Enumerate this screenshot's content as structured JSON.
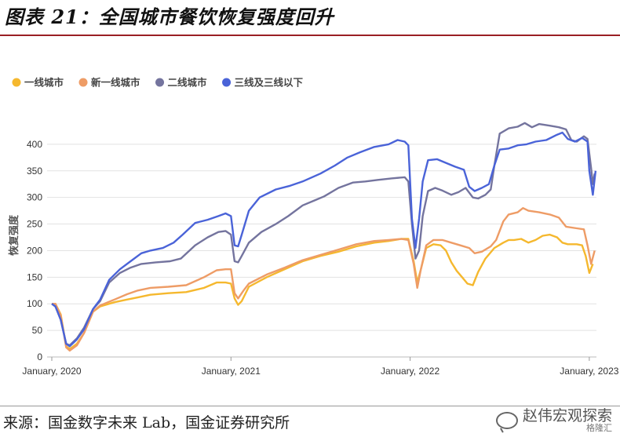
{
  "figure": {
    "title": "图表 21：全国城市餐饮恢复强度回升",
    "source": "来源：国金数字未来 Lab，国金证券研究所",
    "watermark": "赵伟宏观探索",
    "watermark_sub": "格隆汇"
  },
  "chart_data": {
    "type": "line",
    "ylabel": "恢复强度",
    "ylim": [
      0,
      450
    ],
    "yticks": [
      0,
      50,
      100,
      150,
      200,
      250,
      300,
      350,
      400
    ],
    "xlim": [
      2020.0,
      2023.04
    ],
    "xticks": [
      {
        "value": 2020.0,
        "label": "January, 2020"
      },
      {
        "value": 2021.0,
        "label": "January, 2021"
      },
      {
        "value": 2022.0,
        "label": "January, 2022"
      },
      {
        "value": 2023.0,
        "label": "January, 2023"
      }
    ],
    "legend_position": "top-left",
    "series": [
      {
        "name": "一线城市",
        "color": "#f5b82e",
        "points": [
          [
            2020.0,
            100
          ],
          [
            2020.02,
            100
          ],
          [
            2020.05,
            80
          ],
          [
            2020.08,
            20
          ],
          [
            2020.1,
            15
          ],
          [
            2020.14,
            25
          ],
          [
            2020.18,
            45
          ],
          [
            2020.23,
            85
          ],
          [
            2020.27,
            95
          ],
          [
            2020.35,
            103
          ],
          [
            2020.42,
            108
          ],
          [
            2020.48,
            112
          ],
          [
            2020.55,
            117
          ],
          [
            2020.65,
            120
          ],
          [
            2020.75,
            122
          ],
          [
            2020.85,
            130
          ],
          [
            2020.92,
            140
          ],
          [
            2020.97,
            140
          ],
          [
            2021.0,
            138
          ],
          [
            2021.02,
            110
          ],
          [
            2021.04,
            98
          ],
          [
            2021.06,
            105
          ],
          [
            2021.1,
            132
          ],
          [
            2021.2,
            150
          ],
          [
            2021.3,
            165
          ],
          [
            2021.4,
            180
          ],
          [
            2021.5,
            190
          ],
          [
            2021.6,
            198
          ],
          [
            2021.7,
            208
          ],
          [
            2021.8,
            215
          ],
          [
            2021.88,
            218
          ],
          [
            2021.95,
            222
          ],
          [
            2021.99,
            222
          ],
          [
            2022.02,
            180
          ],
          [
            2022.04,
            140
          ],
          [
            2022.06,
            165
          ],
          [
            2022.09,
            205
          ],
          [
            2022.13,
            212
          ],
          [
            2022.17,
            210
          ],
          [
            2022.2,
            200
          ],
          [
            2022.23,
            178
          ],
          [
            2022.26,
            162
          ],
          [
            2022.29,
            150
          ],
          [
            2022.32,
            138
          ],
          [
            2022.35,
            135
          ],
          [
            2022.38,
            160
          ],
          [
            2022.42,
            185
          ],
          [
            2022.47,
            205
          ],
          [
            2022.52,
            215
          ],
          [
            2022.55,
            220
          ],
          [
            2022.58,
            220
          ],
          [
            2022.62,
            222
          ],
          [
            2022.66,
            215
          ],
          [
            2022.7,
            220
          ],
          [
            2022.74,
            228
          ],
          [
            2022.78,
            230
          ],
          [
            2022.82,
            225
          ],
          [
            2022.85,
            215
          ],
          [
            2022.88,
            212
          ],
          [
            2022.93,
            212
          ],
          [
            2022.96,
            210
          ],
          [
            2022.98,
            190
          ],
          [
            2023.0,
            158
          ],
          [
            2023.02,
            175
          ]
        ]
      },
      {
        "name": "新一线城市",
        "color": "#ee9c66",
        "points": [
          [
            2020.0,
            100
          ],
          [
            2020.02,
            100
          ],
          [
            2020.05,
            78
          ],
          [
            2020.08,
            18
          ],
          [
            2020.1,
            12
          ],
          [
            2020.14,
            22
          ],
          [
            2020.18,
            45
          ],
          [
            2020.23,
            85
          ],
          [
            2020.27,
            97
          ],
          [
            2020.35,
            108
          ],
          [
            2020.42,
            118
          ],
          [
            2020.48,
            125
          ],
          [
            2020.55,
            130
          ],
          [
            2020.65,
            132
          ],
          [
            2020.75,
            135
          ],
          [
            2020.85,
            150
          ],
          [
            2020.92,
            163
          ],
          [
            2020.97,
            165
          ],
          [
            2021.0,
            165
          ],
          [
            2021.02,
            120
          ],
          [
            2021.04,
            110
          ],
          [
            2021.07,
            125
          ],
          [
            2021.1,
            138
          ],
          [
            2021.2,
            155
          ],
          [
            2021.3,
            168
          ],
          [
            2021.4,
            182
          ],
          [
            2021.5,
            192
          ],
          [
            2021.6,
            202
          ],
          [
            2021.7,
            212
          ],
          [
            2021.8,
            218
          ],
          [
            2021.88,
            220
          ],
          [
            2021.95,
            222
          ],
          [
            2021.99,
            220
          ],
          [
            2022.02,
            175
          ],
          [
            2022.04,
            130
          ],
          [
            2022.06,
            165
          ],
          [
            2022.09,
            210
          ],
          [
            2022.13,
            220
          ],
          [
            2022.18,
            220
          ],
          [
            2022.23,
            215
          ],
          [
            2022.28,
            210
          ],
          [
            2022.33,
            205
          ],
          [
            2022.36,
            195
          ],
          [
            2022.4,
            198
          ],
          [
            2022.45,
            208
          ],
          [
            2022.48,
            220
          ],
          [
            2022.52,
            255
          ],
          [
            2022.55,
            268
          ],
          [
            2022.6,
            272
          ],
          [
            2022.63,
            280
          ],
          [
            2022.66,
            275
          ],
          [
            2022.72,
            272
          ],
          [
            2022.78,
            268
          ],
          [
            2022.83,
            262
          ],
          [
            2022.87,
            245
          ],
          [
            2022.93,
            242
          ],
          [
            2022.97,
            240
          ],
          [
            2022.99,
            210
          ],
          [
            2023.01,
            175
          ],
          [
            2023.03,
            200
          ]
        ]
      },
      {
        "name": "二线城市",
        "color": "#74749e",
        "points": [
          [
            2020.0,
            100
          ],
          [
            2020.02,
            95
          ],
          [
            2020.05,
            70
          ],
          [
            2020.08,
            25
          ],
          [
            2020.1,
            22
          ],
          [
            2020.14,
            35
          ],
          [
            2020.18,
            55
          ],
          [
            2020.23,
            90
          ],
          [
            2020.27,
            105
          ],
          [
            2020.32,
            140
          ],
          [
            2020.38,
            158
          ],
          [
            2020.44,
            168
          ],
          [
            2020.5,
            175
          ],
          [
            2020.58,
            178
          ],
          [
            2020.66,
            180
          ],
          [
            2020.72,
            185
          ],
          [
            2020.8,
            210
          ],
          [
            2020.87,
            225
          ],
          [
            2020.93,
            235
          ],
          [
            2020.97,
            237
          ],
          [
            2021.0,
            230
          ],
          [
            2021.02,
            180
          ],
          [
            2021.04,
            178
          ],
          [
            2021.06,
            190
          ],
          [
            2021.1,
            215
          ],
          [
            2021.17,
            235
          ],
          [
            2021.25,
            250
          ],
          [
            2021.32,
            265
          ],
          [
            2021.4,
            285
          ],
          [
            2021.47,
            295
          ],
          [
            2021.52,
            302
          ],
          [
            2021.6,
            318
          ],
          [
            2021.68,
            328
          ],
          [
            2021.75,
            330
          ],
          [
            2021.82,
            333
          ],
          [
            2021.9,
            336
          ],
          [
            2021.97,
            338
          ],
          [
            2021.99,
            330
          ],
          [
            2022.01,
            250
          ],
          [
            2022.03,
            185
          ],
          [
            2022.05,
            200
          ],
          [
            2022.07,
            265
          ],
          [
            2022.1,
            312
          ],
          [
            2022.14,
            318
          ],
          [
            2022.18,
            313
          ],
          [
            2022.23,
            305
          ],
          [
            2022.27,
            310
          ],
          [
            2022.31,
            318
          ],
          [
            2022.35,
            300
          ],
          [
            2022.38,
            298
          ],
          [
            2022.42,
            305
          ],
          [
            2022.45,
            315
          ],
          [
            2022.47,
            360
          ],
          [
            2022.5,
            420
          ],
          [
            2022.55,
            430
          ],
          [
            2022.6,
            433
          ],
          [
            2022.64,
            440
          ],
          [
            2022.68,
            432
          ],
          [
            2022.72,
            438
          ],
          [
            2022.78,
            435
          ],
          [
            2022.83,
            432
          ],
          [
            2022.87,
            428
          ],
          [
            2022.9,
            408
          ],
          [
            2022.93,
            405
          ],
          [
            2022.97,
            415
          ],
          [
            2022.99,
            410
          ],
          [
            2023.01,
            355
          ],
          [
            2023.02,
            325
          ],
          [
            2023.03,
            345
          ]
        ]
      },
      {
        "name": "三线及三线以下",
        "color": "#4a63d8",
        "points": [
          [
            2020.0,
            100
          ],
          [
            2020.02,
            95
          ],
          [
            2020.05,
            70
          ],
          [
            2020.08,
            25
          ],
          [
            2020.1,
            20
          ],
          [
            2020.14,
            33
          ],
          [
            2020.18,
            52
          ],
          [
            2020.23,
            90
          ],
          [
            2020.27,
            108
          ],
          [
            2020.32,
            145
          ],
          [
            2020.38,
            165
          ],
          [
            2020.44,
            180
          ],
          [
            2020.5,
            195
          ],
          [
            2020.55,
            200
          ],
          [
            2020.62,
            205
          ],
          [
            2020.68,
            215
          ],
          [
            2020.73,
            230
          ],
          [
            2020.8,
            252
          ],
          [
            2020.87,
            258
          ],
          [
            2020.93,
            265
          ],
          [
            2020.97,
            270
          ],
          [
            2021.0,
            265
          ],
          [
            2021.02,
            210
          ],
          [
            2021.04,
            208
          ],
          [
            2021.06,
            230
          ],
          [
            2021.1,
            275
          ],
          [
            2021.16,
            300
          ],
          [
            2021.25,
            315
          ],
          [
            2021.33,
            322
          ],
          [
            2021.4,
            330
          ],
          [
            2021.5,
            345
          ],
          [
            2021.58,
            360
          ],
          [
            2021.65,
            375
          ],
          [
            2021.72,
            385
          ],
          [
            2021.8,
            395
          ],
          [
            2021.88,
            400
          ],
          [
            2021.93,
            408
          ],
          [
            2021.97,
            405
          ],
          [
            2021.99,
            398
          ],
          [
            2022.01,
            260
          ],
          [
            2022.03,
            205
          ],
          [
            2022.05,
            260
          ],
          [
            2022.07,
            330
          ],
          [
            2022.1,
            370
          ],
          [
            2022.15,
            372
          ],
          [
            2022.2,
            365
          ],
          [
            2022.25,
            358
          ],
          [
            2022.3,
            352
          ],
          [
            2022.33,
            320
          ],
          [
            2022.36,
            312
          ],
          [
            2022.4,
            318
          ],
          [
            2022.44,
            325
          ],
          [
            2022.47,
            360
          ],
          [
            2022.5,
            390
          ],
          [
            2022.55,
            392
          ],
          [
            2022.6,
            398
          ],
          [
            2022.65,
            400
          ],
          [
            2022.7,
            405
          ],
          [
            2022.76,
            408
          ],
          [
            2022.82,
            418
          ],
          [
            2022.85,
            422
          ],
          [
            2022.88,
            410
          ],
          [
            2022.92,
            405
          ],
          [
            2022.96,
            412
          ],
          [
            2022.99,
            405
          ],
          [
            2023.0,
            350
          ],
          [
            2023.02,
            305
          ],
          [
            2023.035,
            350
          ]
        ]
      }
    ]
  }
}
